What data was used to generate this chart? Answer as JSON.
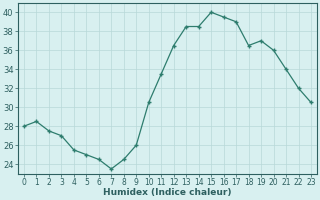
{
  "x": [
    0,
    1,
    2,
    3,
    4,
    5,
    6,
    7,
    8,
    9,
    10,
    11,
    12,
    13,
    14,
    15,
    16,
    17,
    18,
    19,
    20,
    21,
    22,
    23
  ],
  "y": [
    28,
    28.5,
    27.5,
    27,
    25.5,
    25,
    24.5,
    23.5,
    24.5,
    26,
    30.5,
    33.5,
    36.5,
    38.5,
    38.5,
    40,
    39.5,
    39,
    36.5,
    37,
    36,
    34,
    32,
    30.5
  ],
  "line_color": "#2e7d6e",
  "marker": "+",
  "marker_size": 3.5,
  "marker_lw": 1.0,
  "line_width": 0.9,
  "bg_color": "#d8f0f0",
  "grid_color": "#b8d8d8",
  "tick_color": "#2e6060",
  "xlabel": "Humidex (Indice chaleur)",
  "ylim": [
    23,
    41
  ],
  "xlim": [
    -0.5,
    23.5
  ],
  "yticks": [
    24,
    26,
    28,
    30,
    32,
    34,
    36,
    38,
    40
  ],
  "xticks": [
    0,
    1,
    2,
    3,
    4,
    5,
    6,
    7,
    8,
    9,
    10,
    11,
    12,
    13,
    14,
    15,
    16,
    17,
    18,
    19,
    20,
    21,
    22,
    23
  ],
  "xlabel_fontsize": 6.5,
  "tick_fontsize": 5.5,
  "ytick_fontsize": 6.0
}
